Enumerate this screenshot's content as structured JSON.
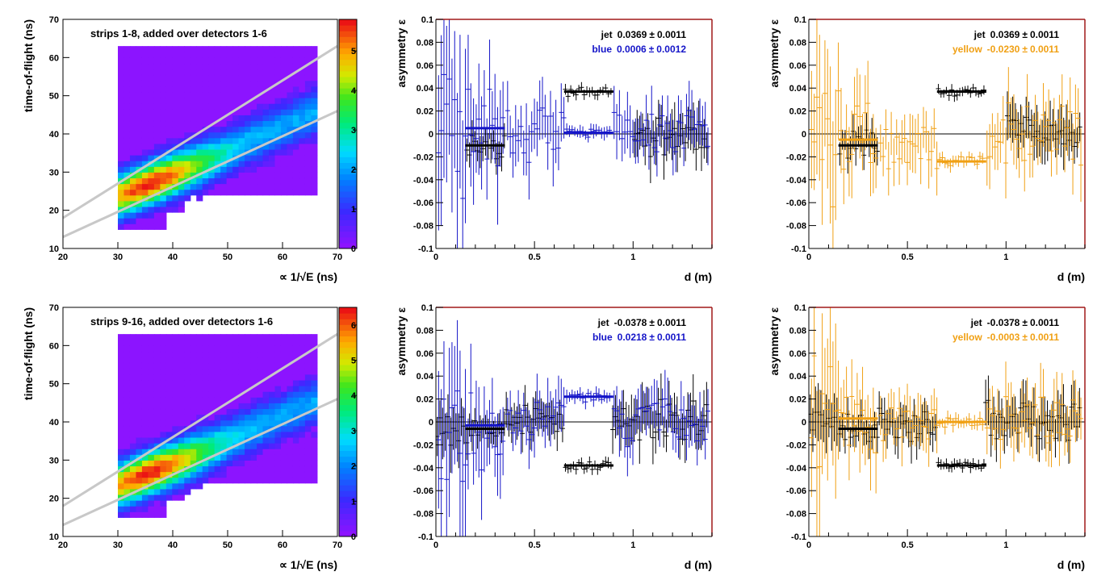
{
  "colors": {
    "frame": "#a01818",
    "black": "#000000",
    "blue": "#1414c8",
    "yellow": "#f0a014",
    "band": "#c8c8c8",
    "heat_background": "#8c14ff"
  },
  "chart_data": [
    {
      "type": "heatmap",
      "title": "strips 1-8, added over detectors 1-6",
      "xlabel": "∝ 1/√E (ns)",
      "ylabel": "time-of-flight (ns)",
      "xlim": [
        20,
        70
      ],
      "ylim": [
        10,
        70
      ],
      "xticks": [
        "20",
        "30",
        "40",
        "50",
        "60",
        "70"
      ],
      "yticks": [
        "10",
        "20",
        "30",
        "40",
        "50",
        "60",
        "70"
      ],
      "colorbar_ticks": [
        "0",
        "1",
        "2",
        "3",
        "4",
        "5"
      ],
      "peak": {
        "x": 35,
        "y": 26.5,
        "value": 5.8
      },
      "ridge": {
        "slope": 0.62,
        "intercept": 4.8
      },
      "band_lines": [
        {
          "x": [
            20,
            70
          ],
          "y": [
            18,
            63
          ]
        },
        {
          "x": [
            20,
            70
          ],
          "y": [
            13,
            46
          ]
        }
      ]
    },
    {
      "type": "scatter",
      "xlabel": "d (m)",
      "ylabel": "asymmetry ε",
      "xlim": [
        0,
        1.4
      ],
      "ylim": [
        -0.1,
        0.1
      ],
      "xticks": [
        "0",
        "0.5",
        "1"
      ],
      "yticks": [
        "-0.1",
        "-0.08",
        "-0.06",
        "-0.04",
        "-0.02",
        "0",
        "0.02",
        "0.04",
        "0.06",
        "0.08",
        "0.1"
      ],
      "legend": [
        {
          "label": "jet",
          "value": "0.0369",
          "error": "0.0011",
          "color": "#000000"
        },
        {
          "label": "blue",
          "value": "0.0006",
          "error": "0.0012",
          "color": "#1414c8"
        }
      ],
      "series": [
        {
          "color": "#000000",
          "seed": 11,
          "segments": [
            {
              "from": 0.15,
              "to": 0.35,
              "level": -0.01,
              "err": 0.012
            },
            {
              "from": 0.65,
              "to": 0.89,
              "level": 0.037,
              "err": 0.004
            },
            {
              "from": 1.0,
              "to": 1.38,
              "level": 0.0,
              "err": 0.018
            }
          ]
        },
        {
          "color": "#1414c8",
          "seed": 23,
          "segments": [
            {
              "from": 0.0,
              "to": 0.15,
              "level": 0.0,
              "err": 0.08
            },
            {
              "from": 0.15,
              "to": 0.35,
              "level": 0.005,
              "err": 0.04
            },
            {
              "from": 0.35,
              "to": 0.65,
              "level": 0.0,
              "err": 0.025
            },
            {
              "from": 0.65,
              "to": 0.89,
              "level": 0.001,
              "err": 0.005
            },
            {
              "from": 0.89,
              "to": 1.38,
              "level": 0.0,
              "err": 0.02
            }
          ]
        }
      ],
      "fits": [
        {
          "color": "#1414c8",
          "x": [
            0.15,
            0.35
          ],
          "y": 0.005
        },
        {
          "color": "#000000",
          "x": [
            0.15,
            0.35
          ],
          "y": -0.01
        },
        {
          "color": "#000000",
          "x": [
            0.65,
            0.9
          ],
          "y": 0.037
        },
        {
          "color": "#1414c8",
          "x": [
            0.65,
            0.9
          ],
          "y": 0.001
        }
      ]
    },
    {
      "type": "scatter",
      "xlabel": "d (m)",
      "ylabel": "asymmetry ε",
      "xlim": [
        0,
        1.4
      ],
      "ylim": [
        -0.1,
        0.1
      ],
      "xticks": [
        "0",
        "0.5",
        "1"
      ],
      "yticks": [
        "-0.1",
        "-0.08",
        "-0.06",
        "-0.04",
        "-0.02",
        "0",
        "0.02",
        "0.04",
        "0.06",
        "0.08",
        "0.1"
      ],
      "legend": [
        {
          "label": "jet",
          "value": "0.0369",
          "error": "0.0011",
          "color": "#000000"
        },
        {
          "label": "yellow",
          "value": "-0.0230",
          "error": "0.0011",
          "color": "#f0a014"
        }
      ],
      "series": [
        {
          "color": "#000000",
          "seed": 31,
          "segments": [
            {
              "from": 0.15,
              "to": 0.35,
              "level": -0.01,
              "err": 0.012
            },
            {
              "from": 0.65,
              "to": 0.89,
              "level": 0.037,
              "err": 0.004
            },
            {
              "from": 1.0,
              "to": 1.38,
              "level": 0.0,
              "err": 0.018
            }
          ]
        },
        {
          "color": "#f0a014",
          "seed": 47,
          "segments": [
            {
              "from": 0.0,
              "to": 0.15,
              "level": 0.0,
              "err": 0.06
            },
            {
              "from": 0.15,
              "to": 0.35,
              "level": -0.005,
              "err": 0.03
            },
            {
              "from": 0.35,
              "to": 0.65,
              "level": -0.01,
              "err": 0.02
            },
            {
              "from": 0.65,
              "to": 0.89,
              "level": -0.023,
              "err": 0.005
            },
            {
              "from": 0.89,
              "to": 1.38,
              "level": 0.0,
              "err": 0.025
            }
          ]
        }
      ],
      "fits": [
        {
          "color": "#f0a014",
          "x": [
            0.15,
            0.35
          ],
          "y": -0.005
        },
        {
          "color": "#000000",
          "x": [
            0.15,
            0.35
          ],
          "y": -0.01
        },
        {
          "color": "#000000",
          "x": [
            0.65,
            0.9
          ],
          "y": 0.037
        },
        {
          "color": "#f0a014",
          "x": [
            0.65,
            0.9
          ],
          "y": -0.024
        }
      ]
    },
    {
      "type": "heatmap",
      "title": "strips 9-16, added over detectors 1-6",
      "xlabel": "∝ 1/√E (ns)",
      "ylabel": "time-of-flight (ns)",
      "xlim": [
        20,
        70
      ],
      "ylim": [
        10,
        70
      ],
      "xticks": [
        "20",
        "30",
        "40",
        "50",
        "60",
        "70"
      ],
      "yticks": [
        "10",
        "20",
        "30",
        "40",
        "50",
        "60",
        "70"
      ],
      "colorbar_ticks": [
        "0",
        "1",
        "2",
        "3",
        "4",
        "5",
        "6"
      ],
      "peak": {
        "x": 35,
        "y": 26,
        "value": 6.5
      },
      "ridge": {
        "slope": 0.62,
        "intercept": 4.5
      },
      "band_lines": [
        {
          "x": [
            20,
            70
          ],
          "y": [
            18,
            63
          ]
        },
        {
          "x": [
            20,
            70
          ],
          "y": [
            13,
            46
          ]
        }
      ]
    },
    {
      "type": "scatter",
      "xlabel": "d (m)",
      "ylabel": "asymmetry ε",
      "xlim": [
        0,
        1.4
      ],
      "ylim": [
        -0.1,
        0.1
      ],
      "xticks": [
        "0",
        "0.5",
        "1"
      ],
      "yticks": [
        "-0.1",
        "-0.08",
        "-0.06",
        "-0.04",
        "-0.02",
        "0",
        "0.02",
        "0.04",
        "0.06",
        "0.08",
        "0.1"
      ],
      "legend": [
        {
          "label": "jet",
          "value": "-0.0378",
          "error": "0.0011",
          "color": "#000000"
        },
        {
          "label": "blue",
          "value": "0.0218",
          "error": "0.0011",
          "color": "#1414c8"
        }
      ],
      "series": [
        {
          "color": "#000000",
          "seed": 53,
          "segments": [
            {
              "from": 0.0,
              "to": 0.15,
              "level": 0.0,
              "err": 0.02
            },
            {
              "from": 0.15,
              "to": 0.35,
              "level": -0.006,
              "err": 0.012
            },
            {
              "from": 0.35,
              "to": 0.65,
              "level": 0.0,
              "err": 0.015
            },
            {
              "from": 0.65,
              "to": 0.89,
              "level": -0.038,
              "err": 0.004
            },
            {
              "from": 0.89,
              "to": 1.38,
              "level": 0.0,
              "err": 0.018
            }
          ]
        },
        {
          "color": "#1414c8",
          "seed": 67,
          "segments": [
            {
              "from": 0.0,
              "to": 0.15,
              "level": 0.0,
              "err": 0.07
            },
            {
              "from": 0.15,
              "to": 0.35,
              "level": -0.003,
              "err": 0.035
            },
            {
              "from": 0.35,
              "to": 0.65,
              "level": 0.0,
              "err": 0.02
            },
            {
              "from": 0.65,
              "to": 0.89,
              "level": 0.022,
              "err": 0.005
            },
            {
              "from": 0.89,
              "to": 1.38,
              "level": 0.0,
              "err": 0.02
            }
          ]
        }
      ],
      "fits": [
        {
          "color": "#1414c8",
          "x": [
            0.15,
            0.35
          ],
          "y": -0.003
        },
        {
          "color": "#000000",
          "x": [
            0.15,
            0.35
          ],
          "y": -0.006
        },
        {
          "color": "#1414c8",
          "x": [
            0.65,
            0.9
          ],
          "y": 0.022
        },
        {
          "color": "#000000",
          "x": [
            0.65,
            0.9
          ],
          "y": -0.038
        }
      ]
    },
    {
      "type": "scatter",
      "xlabel": "d (m)",
      "ylabel": "asymmetry ε",
      "xlim": [
        0,
        1.4
      ],
      "ylim": [
        -0.1,
        0.1
      ],
      "xticks": [
        "0",
        "0.5",
        "1"
      ],
      "yticks": [
        "-0.1",
        "-0.08",
        "-0.06",
        "-0.04",
        "-0.02",
        "0",
        "0.02",
        "0.04",
        "0.06",
        "0.08",
        "0.1"
      ],
      "legend": [
        {
          "label": "jet",
          "value": "-0.0378",
          "error": "0.0011",
          "color": "#000000"
        },
        {
          "label": "yellow",
          "value": "-0.0003",
          "error": "0.0011",
          "color": "#f0a014"
        }
      ],
      "series": [
        {
          "color": "#000000",
          "seed": 71,
          "segments": [
            {
              "from": 0.0,
              "to": 0.15,
              "level": 0.0,
              "err": 0.02
            },
            {
              "from": 0.15,
              "to": 0.35,
              "level": -0.006,
              "err": 0.012
            },
            {
              "from": 0.35,
              "to": 0.65,
              "level": 0.0,
              "err": 0.015
            },
            {
              "from": 0.65,
              "to": 0.89,
              "level": -0.038,
              "err": 0.004
            },
            {
              "from": 0.89,
              "to": 1.38,
              "level": 0.0,
              "err": 0.018
            }
          ]
        },
        {
          "color": "#f0a014",
          "seed": 89,
          "segments": [
            {
              "from": 0.0,
              "to": 0.15,
              "level": 0.0,
              "err": 0.06
            },
            {
              "from": 0.15,
              "to": 0.35,
              "level": 0.003,
              "err": 0.03
            },
            {
              "from": 0.35,
              "to": 0.65,
              "level": 0.0,
              "err": 0.02
            },
            {
              "from": 0.65,
              "to": 0.89,
              "level": 0.0,
              "err": 0.005
            },
            {
              "from": 0.89,
              "to": 1.38,
              "level": 0.0,
              "err": 0.025
            }
          ]
        }
      ],
      "fits": [
        {
          "color": "#f0a014",
          "x": [
            0.15,
            0.35
          ],
          "y": 0.003
        },
        {
          "color": "#000000",
          "x": [
            0.15,
            0.35
          ],
          "y": -0.006
        },
        {
          "color": "#f0a014",
          "x": [
            0.65,
            0.9
          ],
          "y": 0.0
        },
        {
          "color": "#000000",
          "x": [
            0.65,
            0.9
          ],
          "y": -0.038
        }
      ]
    }
  ]
}
